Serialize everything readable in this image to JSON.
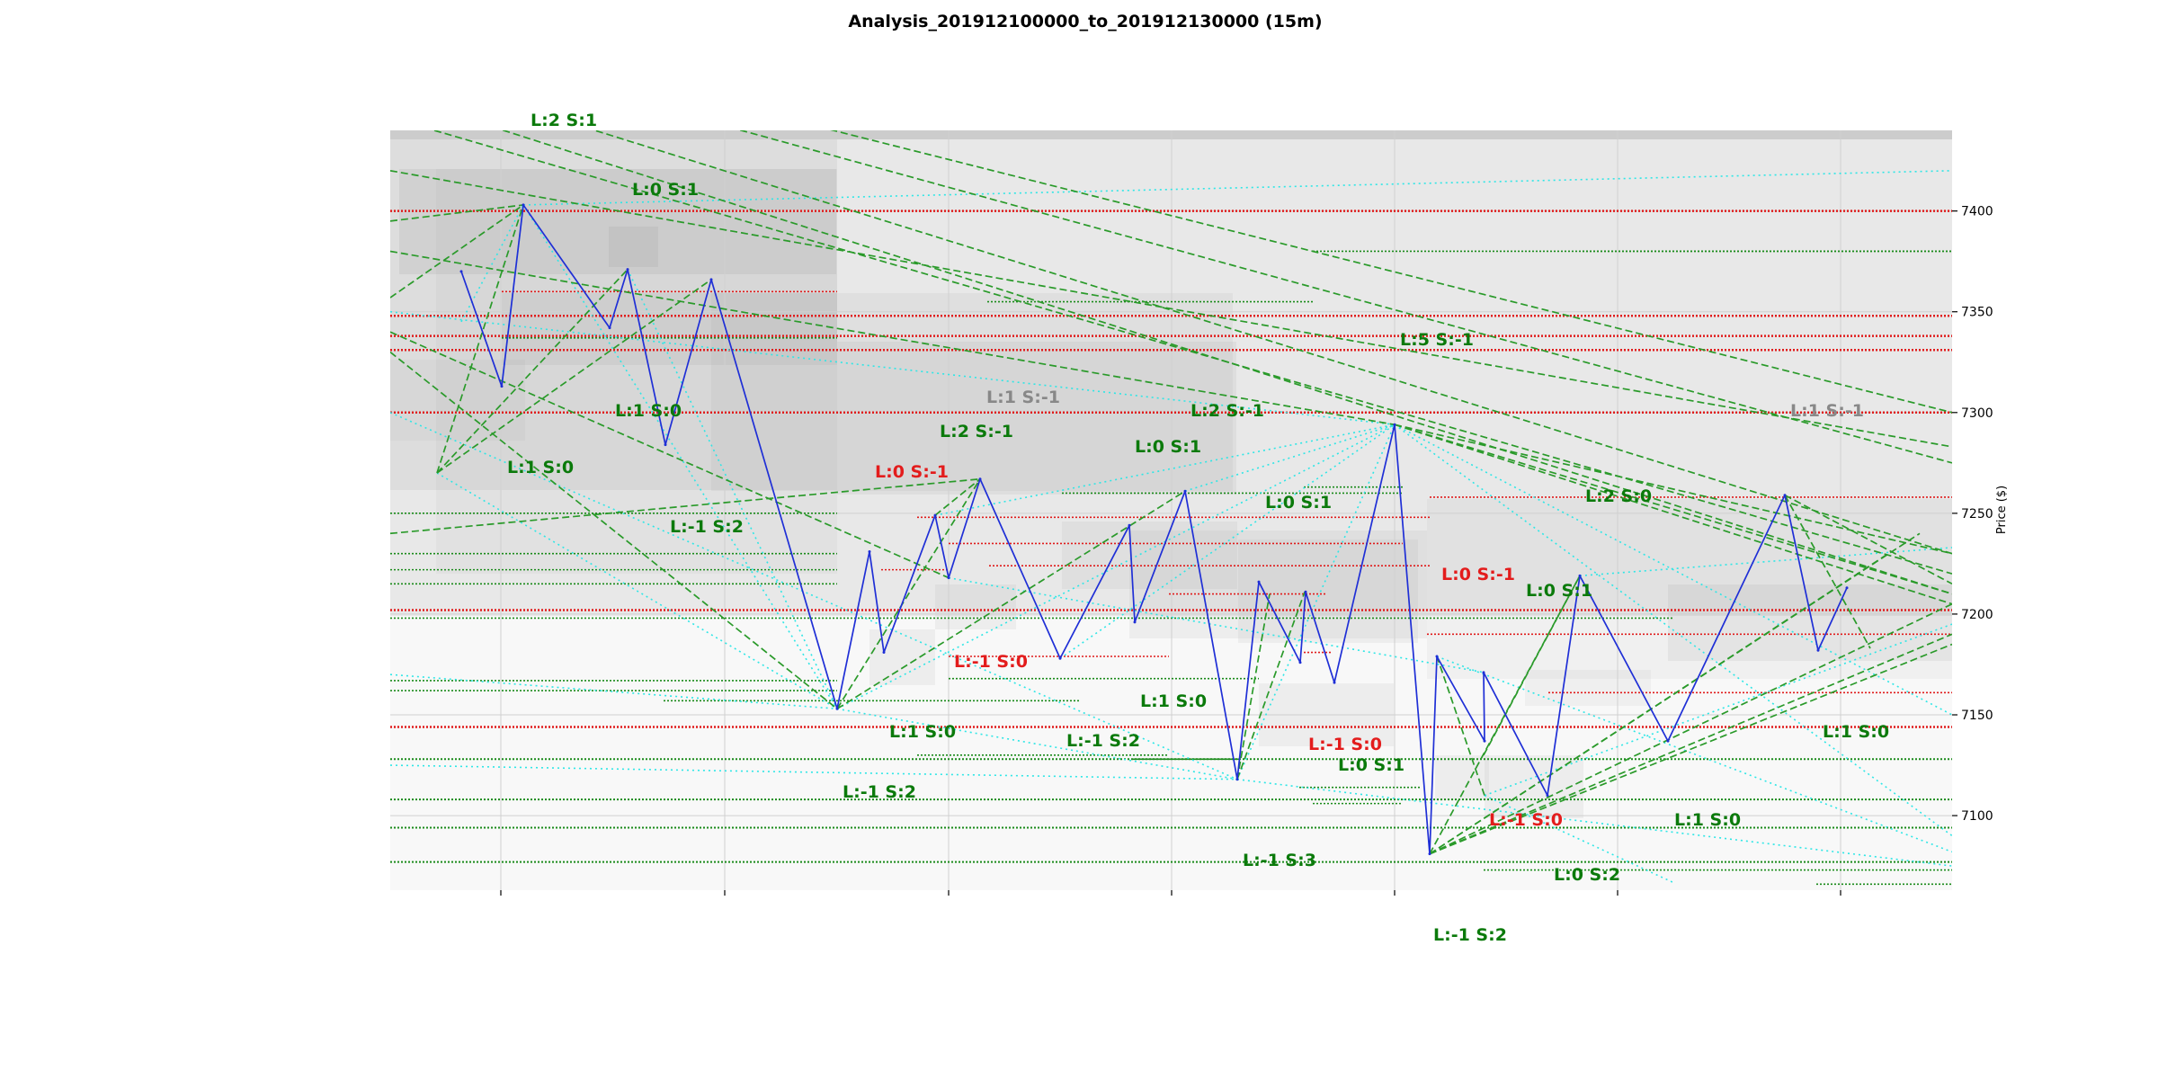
{
  "chart_data": {
    "type": "line",
    "title": "Analysis_201912100000_to_201912130000 (15m)",
    "xlabel": "",
    "ylabel": "Price ($)",
    "ylim": [
      7063,
      7440
    ],
    "y_ticks": [
      7100,
      7150,
      7200,
      7250,
      7300,
      7350,
      7400
    ],
    "x_ticks": [],
    "grid": true,
    "colors": {
      "price_line": "#1f2fd6",
      "trend_dashed": "#2a9a2a",
      "projection_dotted": "#2ee6e6",
      "level_red": "#e01b1b",
      "level_green": "#1a8a1a",
      "label_green": "#0b7a0b",
      "label_red": "#e31c1c",
      "label_gray": "#888888"
    },
    "series": [
      {
        "values": [
          7370,
          7313,
          7403,
          7342,
          7371,
          7284,
          7366,
          7153,
          7231,
          7181,
          7249,
          7218,
          7267,
          7178,
          7244,
          7196,
          7261,
          7118,
          7216,
          7176,
          7211,
          7166,
          7294,
          7081,
          7179,
          7137,
          7171,
          7110,
          7219,
          7137,
          7259,
          7182,
          7213
        ]
      }
    ],
    "red_levels": [
      7400,
      7348,
      7338,
      7331,
      7300,
      7202,
      7144
    ],
    "green_levels": [
      7077,
      7094,
      7108,
      7128
    ],
    "annotations": [
      {
        "text": "L:2 S:1",
        "color": "green"
      },
      {
        "text": "L:0 S:1",
        "color": "green"
      },
      {
        "text": "L:1 S:0",
        "color": "green"
      },
      {
        "text": "L:1 S:0",
        "color": "green"
      },
      {
        "text": "L:-1 S:2",
        "color": "green"
      },
      {
        "text": "L:1 S:-1",
        "color": "gray"
      },
      {
        "text": "L:2 S:-1",
        "color": "green"
      },
      {
        "text": "L:0 S:-1",
        "color": "red"
      },
      {
        "text": "L:2 S:-1",
        "color": "green"
      },
      {
        "text": "L:0 S:1",
        "color": "green"
      },
      {
        "text": "L:5 S:-1",
        "color": "green"
      },
      {
        "text": "L:0 S:1",
        "color": "green"
      },
      {
        "text": "L:0 S:-1",
        "color": "red"
      },
      {
        "text": "L:0 S:1",
        "color": "green"
      },
      {
        "text": "L:2 S:0",
        "color": "green"
      },
      {
        "text": "L:1 S:-1",
        "color": "gray"
      },
      {
        "text": "L:-1 S:0",
        "color": "red"
      },
      {
        "text": "L:1 S:0",
        "color": "green"
      },
      {
        "text": "L:1 S:0",
        "color": "green"
      },
      {
        "text": "L:-1 S:2",
        "color": "green"
      },
      {
        "text": "L:-1 S:0",
        "color": "red"
      },
      {
        "text": "L:0 S:1",
        "color": "green"
      },
      {
        "text": "L:-1 S:2",
        "color": "green"
      },
      {
        "text": "L:-1 S:3",
        "color": "green"
      },
      {
        "text": "L:-1 S:0",
        "color": "red"
      },
      {
        "text": "L:1 S:0",
        "color": "green"
      },
      {
        "text": "L:1 S:0",
        "color": "green"
      },
      {
        "text": "L:0 S:2",
        "color": "green"
      },
      {
        "text": "L:-1 S:2",
        "color": "green"
      }
    ]
  }
}
